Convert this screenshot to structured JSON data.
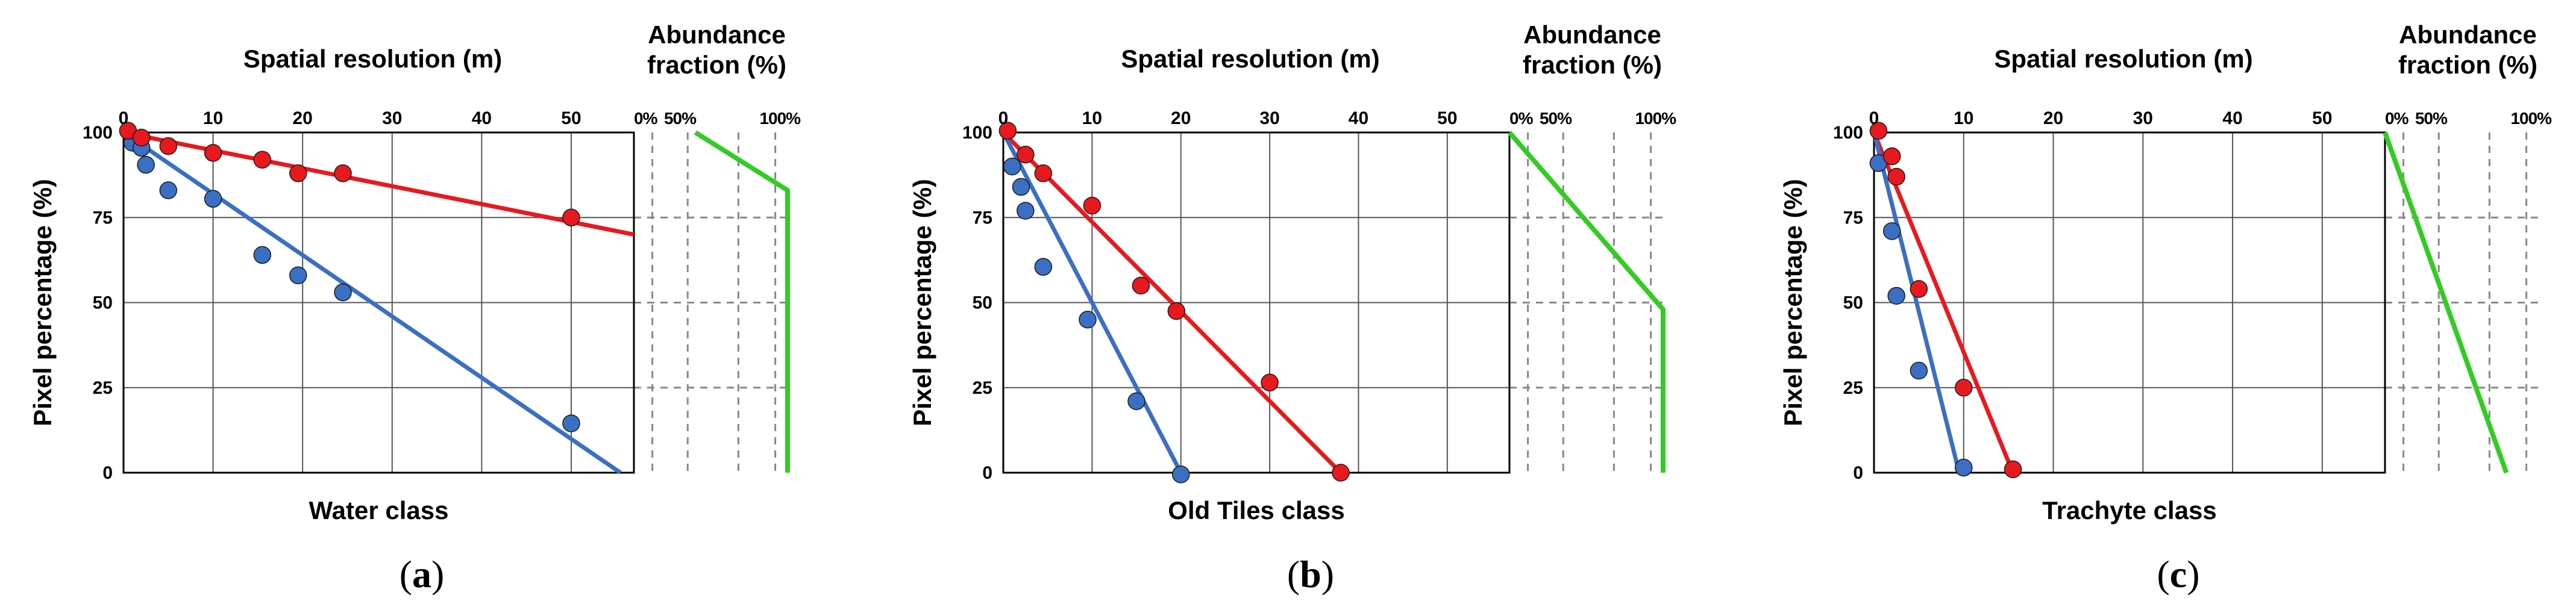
{
  "chart_data": [
    {
      "type": "scatter",
      "panel_label": "a",
      "class_label": "Water class",
      "xlabel": "Spatial resolution (m)",
      "ylabel": "Pixel percentage (%)",
      "xlim": [
        0,
        57
      ],
      "ylim": [
        0,
        100
      ],
      "x_ticks": [
        0,
        10,
        20,
        30,
        40,
        50
      ],
      "y_ticks": [
        0,
        25,
        50,
        75,
        100
      ],
      "series": [
        {
          "color": "#e8191e",
          "points": [
            [
              0.5,
              100.5
            ],
            [
              2,
              98.5
            ],
            [
              5,
              96
            ],
            [
              10,
              94
            ],
            [
              15.5,
              92
            ],
            [
              19.5,
              88
            ],
            [
              24.5,
              88
            ],
            [
              50,
              75
            ]
          ],
          "fit": [
            [
              0,
              100
            ],
            [
              57,
              70
            ]
          ]
        },
        {
          "color": "#3a6fc4",
          "points": [
            [
              1,
              97
            ],
            [
              2,
              95.5
            ],
            [
              2.5,
              90.5
            ],
            [
              5,
              83
            ],
            [
              10,
              80.5
            ],
            [
              15.5,
              64
            ],
            [
              19.5,
              58
            ],
            [
              24.5,
              53
            ],
            [
              50,
              14.5
            ]
          ],
          "fit": [
            [
              0,
              100
            ],
            [
              55.5,
              0
            ]
          ]
        }
      ],
      "abundance": {
        "title": "Abundance fraction (%)",
        "ticks": [
          "0%",
          "50%",
          "100%"
        ],
        "color": "#33cc22",
        "curve": [
          [
            40,
            100
          ],
          [
            100,
            83
          ],
          [
            100,
            0
          ]
        ]
      }
    },
    {
      "type": "scatter",
      "panel_label": "b",
      "class_label": "Old Tiles class",
      "xlabel": "Spatial resolution (m)",
      "ylabel": "Pixel percentage (%)",
      "xlim": [
        0,
        57
      ],
      "ylim": [
        0,
        100
      ],
      "x_ticks": [
        0,
        10,
        20,
        30,
        40,
        50
      ],
      "y_ticks": [
        0,
        25,
        50,
        75,
        100
      ],
      "series": [
        {
          "color": "#e8191e",
          "points": [
            [
              0.5,
              100.5
            ],
            [
              2.5,
              93.5
            ],
            [
              4.5,
              88
            ],
            [
              10,
              78.5
            ],
            [
              15.5,
              55
            ],
            [
              19.5,
              47.5
            ],
            [
              30,
              26.5
            ],
            [
              38,
              0
            ]
          ],
          "fit": [
            [
              0,
              100
            ],
            [
              38,
              0
            ]
          ]
        },
        {
          "color": "#3a6fc4",
          "points": [
            [
              1,
              90
            ],
            [
              2,
              84
            ],
            [
              2.5,
              77
            ],
            [
              4.5,
              60.5
            ],
            [
              9.5,
              45
            ],
            [
              15,
              21
            ],
            [
              20,
              -0.5
            ]
          ],
          "fit": [
            [
              0,
              100
            ],
            [
              20,
              0
            ]
          ]
        }
      ],
      "abundance": {
        "title": "Abundance fraction (%)",
        "ticks": [
          "0%",
          "50%",
          "100%"
        ],
        "color": "#33cc22",
        "curve": [
          [
            0,
            100
          ],
          [
            100,
            48
          ],
          [
            100,
            0
          ]
        ]
      }
    },
    {
      "type": "scatter",
      "panel_label": "c",
      "class_label": "Trachyte class",
      "xlabel": "Spatial resolution (m)",
      "ylabel": "Pixel percentage (%)",
      "xlim": [
        0,
        57
      ],
      "ylim": [
        0,
        100
      ],
      "x_ticks": [
        0,
        10,
        20,
        30,
        40,
        50
      ],
      "y_ticks": [
        0,
        25,
        50,
        75,
        100
      ],
      "series": [
        {
          "color": "#e8191e",
          "points": [
            [
              0.5,
              100.5
            ],
            [
              2,
              93
            ],
            [
              2.5,
              87
            ],
            [
              5,
              54
            ],
            [
              10,
              25
            ],
            [
              15.5,
              1
            ]
          ],
          "fit": [
            [
              0,
              100
            ],
            [
              15.5,
              0
            ]
          ]
        },
        {
          "color": "#3a6fc4",
          "points": [
            [
              0.5,
              91
            ],
            [
              2,
              71
            ],
            [
              2.5,
              52
            ],
            [
              5,
              30
            ],
            [
              10,
              1.5
            ]
          ],
          "fit": [
            [
              0,
              100
            ],
            [
              9.5,
              0
            ]
          ]
        }
      ],
      "abundance": {
        "title": "Abundance fraction (%)",
        "ticks": [
          "0%",
          "50%",
          "100%"
        ],
        "color": "#33cc22",
        "curve": [
          [
            0,
            100
          ],
          [
            79,
            0
          ]
        ]
      }
    }
  ]
}
